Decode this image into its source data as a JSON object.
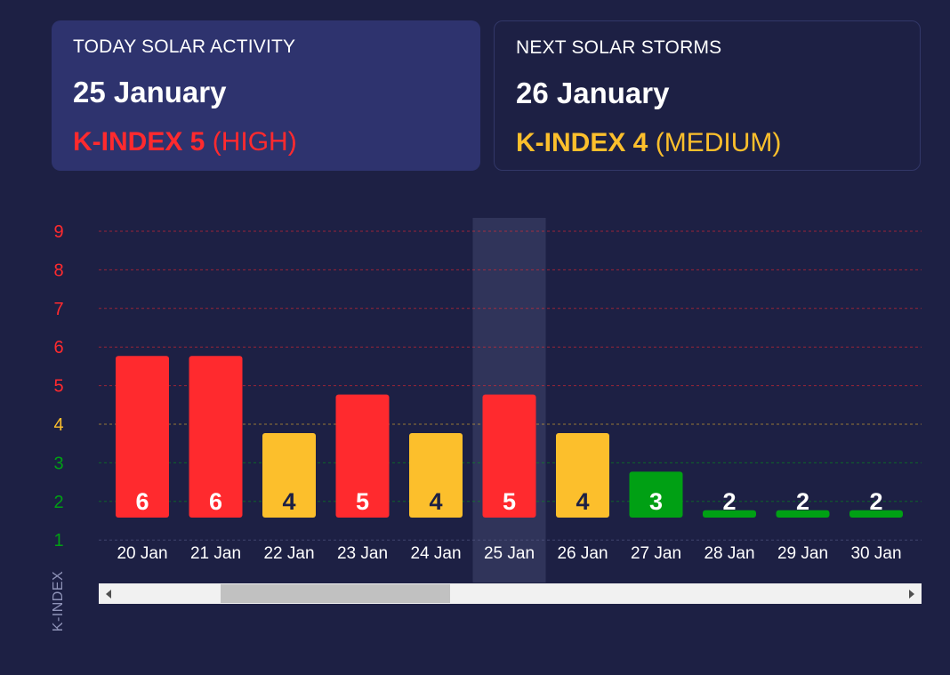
{
  "today": {
    "label": "TODAY SOLAR ACTIVITY",
    "date": "25 January",
    "index": "K-INDEX 5",
    "level": "(HIGH)",
    "color": "#ff2a2e"
  },
  "next": {
    "label": "NEXT SOLAR STORMS",
    "date": "26 January",
    "index": "K-INDEX 4",
    "level": "(MEDIUM)",
    "color": "#fcbf2c"
  },
  "chart_data": {
    "type": "bar",
    "categories": [
      "20 Jan",
      "21 Jan",
      "22 Jan",
      "23 Jan",
      "24 Jan",
      "25 Jan",
      "26 Jan",
      "27 Jan",
      "28 Jan",
      "29 Jan",
      "30 Jan"
    ],
    "values": [
      6,
      6,
      4,
      5,
      4,
      5,
      4,
      3,
      2,
      2,
      2
    ],
    "highlighted_category": "25 Jan",
    "ylabel": "K-INDEX",
    "ylim": [
      1,
      9
    ],
    "yticks": [
      1,
      2,
      3,
      4,
      5,
      6,
      7,
      8,
      9
    ],
    "grid": true,
    "colors": {
      "high": "#ff2a2e",
      "medium": "#fcbf2c",
      "low": "#00a014"
    },
    "value_label_colors": {
      "high": "#ffffff",
      "medium": "#1d2044",
      "low": "#ffffff"
    }
  }
}
